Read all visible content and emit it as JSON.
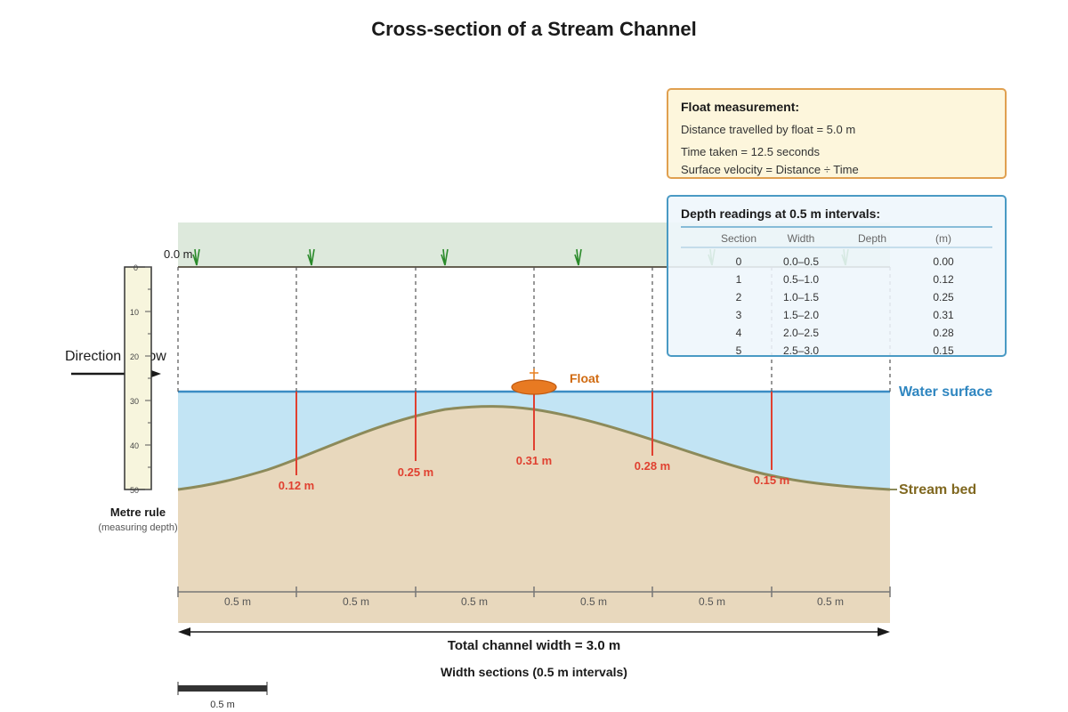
{
  "title": "Cross-section of a Stream Channel",
  "zero_label": "0.0 m",
  "direction_label": "Direction of flow",
  "float_label": "Float",
  "water_surface_label": "Water surface",
  "stream_bed_label": "Stream bed",
  "metre_rule": {
    "label": "Metre rule",
    "sublabel": "(measuring depth)",
    "ticks": [
      "0",
      "10",
      "20",
      "30",
      "40",
      "50"
    ]
  },
  "depth_markers": [
    "0.12 m",
    "0.25 m",
    "0.31 m",
    "0.28 m",
    "0.15 m"
  ],
  "section_widths": [
    "0.5 m",
    "0.5 m",
    "0.5 m",
    "0.5 m",
    "0.5 m",
    "0.5 m"
  ],
  "total_width_label": "Total channel width = 3.0 m",
  "width_sections_label": "Width sections (0.5 m intervals)",
  "scale_bar_label": "0.5 m",
  "float_box": {
    "title": "Float measurement:",
    "lines": [
      "Distance travelled by float = 5.0 m",
      "Time taken = 12.5 seconds",
      "Surface velocity = Distance ÷ Time"
    ]
  },
  "depth_table": {
    "title": "Depth readings at 0.5 m intervals:",
    "headers": [
      "Section",
      "Width",
      "Depth",
      "(m)"
    ],
    "rows": [
      {
        "section": "0",
        "width": "0.0–0.5",
        "depth": "0.00"
      },
      {
        "section": "1",
        "width": "0.5–1.0",
        "depth": "0.12"
      },
      {
        "section": "2",
        "width": "1.0–1.5",
        "depth": "0.25"
      },
      {
        "section": "3",
        "width": "1.5–2.0",
        "depth": "0.31"
      },
      {
        "section": "4",
        "width": "2.0–2.5",
        "depth": "0.28"
      },
      {
        "section": "5",
        "width": "2.5–3.0",
        "depth": "0.15"
      }
    ]
  },
  "colors": {
    "water": "#c2e4f4",
    "water_line": "#3a8cc4",
    "bed": "#e8d8bd",
    "bed_line": "#8c8a5a",
    "bank": "#dde9dc",
    "depth_red": "#e04030",
    "float_orange": "#e88020",
    "float_box_fill": "#fdf6dc",
    "float_box_stroke": "#e0a050",
    "table_fill": "#eef6fc",
    "table_stroke": "#4a9ac4"
  }
}
